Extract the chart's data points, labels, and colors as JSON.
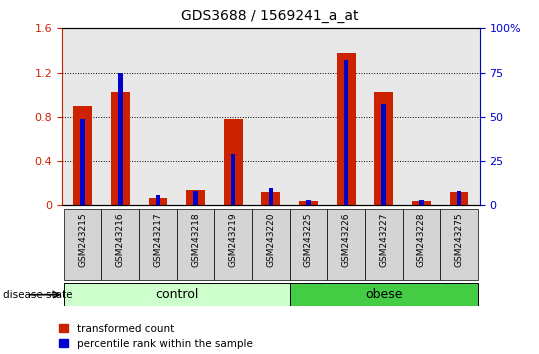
{
  "title": "GDS3688 / 1569241_a_at",
  "samples": [
    "GSM243215",
    "GSM243216",
    "GSM243217",
    "GSM243218",
    "GSM243219",
    "GSM243220",
    "GSM243225",
    "GSM243226",
    "GSM243227",
    "GSM243228",
    "GSM243275"
  ],
  "transformed_count": [
    0.9,
    1.02,
    0.07,
    0.14,
    0.78,
    0.12,
    0.04,
    1.38,
    1.02,
    0.04,
    0.12
  ],
  "percentile_rank_pct": [
    49,
    75,
    6,
    8,
    29,
    10,
    3,
    82,
    57,
    3,
    8
  ],
  "ylim_left": [
    0,
    1.6
  ],
  "ylim_right": [
    0,
    100
  ],
  "yticks_left": [
    0,
    0.4,
    0.8,
    1.2,
    1.6
  ],
  "yticks_right": [
    0,
    25,
    50,
    75,
    100
  ],
  "ytick_labels_left": [
    "0",
    "0.4",
    "0.8",
    "1.2",
    "1.6"
  ],
  "ytick_labels_right": [
    "0",
    "25",
    "50",
    "75",
    "100%"
  ],
  "bar_color_red": "#cc2200",
  "bar_color_blue": "#0000cc",
  "grid_color": "#000000",
  "n_control": 6,
  "n_obese": 5,
  "control_label": "control",
  "obese_label": "obese",
  "disease_state_label": "disease state",
  "legend_red": "transformed count",
  "legend_blue": "percentile rank within the sample",
  "control_color": "#ccffcc",
  "obese_color": "#44cc44",
  "red_bar_width": 0.5,
  "blue_bar_width": 0.12,
  "tick_label_color_left": "#cc2200",
  "tick_label_color_right": "#0000cc",
  "bg_plot_color": "#e8e8e8",
  "col_sep_color": "#aaaaaa"
}
